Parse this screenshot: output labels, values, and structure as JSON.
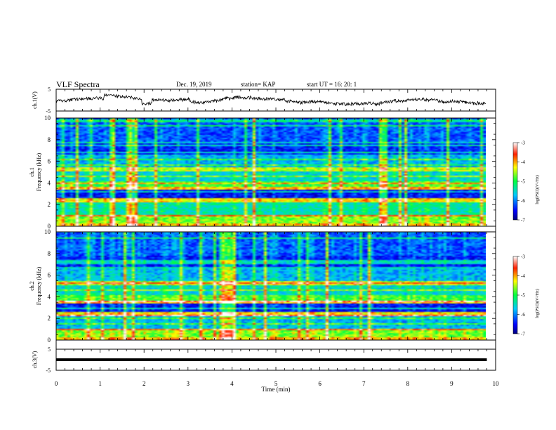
{
  "header": {
    "title": "VLF Spectra",
    "date": "Dec. 19, 2019",
    "station": "station= KAP",
    "start": "start  UT =   16: 20: 1"
  },
  "colors": {
    "axis": "#000000",
    "background": "#ffffff"
  },
  "chart_data": [
    {
      "type": "line",
      "ylabel": "ch.1(V)",
      "ylim": [
        -5,
        5
      ],
      "yticks": [
        "5",
        "-5"
      ],
      "xlim": [
        0,
        10
      ],
      "series": [
        {
          "x": [
            0,
            9.8
          ],
          "values": [
            0,
            0
          ]
        }
      ]
    },
    {
      "type": "heatmap",
      "ylabel_top": "ch.1",
      "ylabel": "Frequency (kHz)",
      "ylim": [
        0,
        10
      ],
      "yticks": [
        "0",
        "2",
        "4",
        "6",
        "8",
        "10"
      ],
      "xlim": [
        0,
        10
      ],
      "colorbar": {
        "label": "log(PSD)(V²/Hz)",
        "range": [
          -7,
          -3
        ],
        "ticks": [
          "-3",
          "-4",
          "-5",
          "-6",
          "-7"
        ]
      }
    },
    {
      "type": "heatmap",
      "ylabel_top": "ch.2",
      "ylabel": "Frequency (kHz)",
      "ylim": [
        0,
        10
      ],
      "yticks": [
        "0",
        "2",
        "4",
        "6",
        "8",
        "10"
      ],
      "xlim": [
        0,
        10
      ],
      "colorbar": {
        "label": "log(PSD)(V²/Hz)",
        "range": [
          -7,
          -3
        ],
        "ticks": [
          "-3",
          "-4",
          "-5",
          "-6",
          "-7"
        ]
      }
    },
    {
      "type": "line",
      "ylabel": "ch.3(V)",
      "ylim": [
        -5,
        5
      ],
      "yticks": [
        "5",
        "-5"
      ],
      "xlim": [
        0,
        10
      ],
      "xlabel": "Time (min)",
      "xticks": [
        "0",
        "1",
        "2",
        "3",
        "4",
        "5",
        "6",
        "7",
        "8",
        "9",
        "10"
      ],
      "series": [
        {
          "x": [
            0,
            9.8
          ],
          "values": [
            0,
            0
          ]
        }
      ]
    }
  ]
}
